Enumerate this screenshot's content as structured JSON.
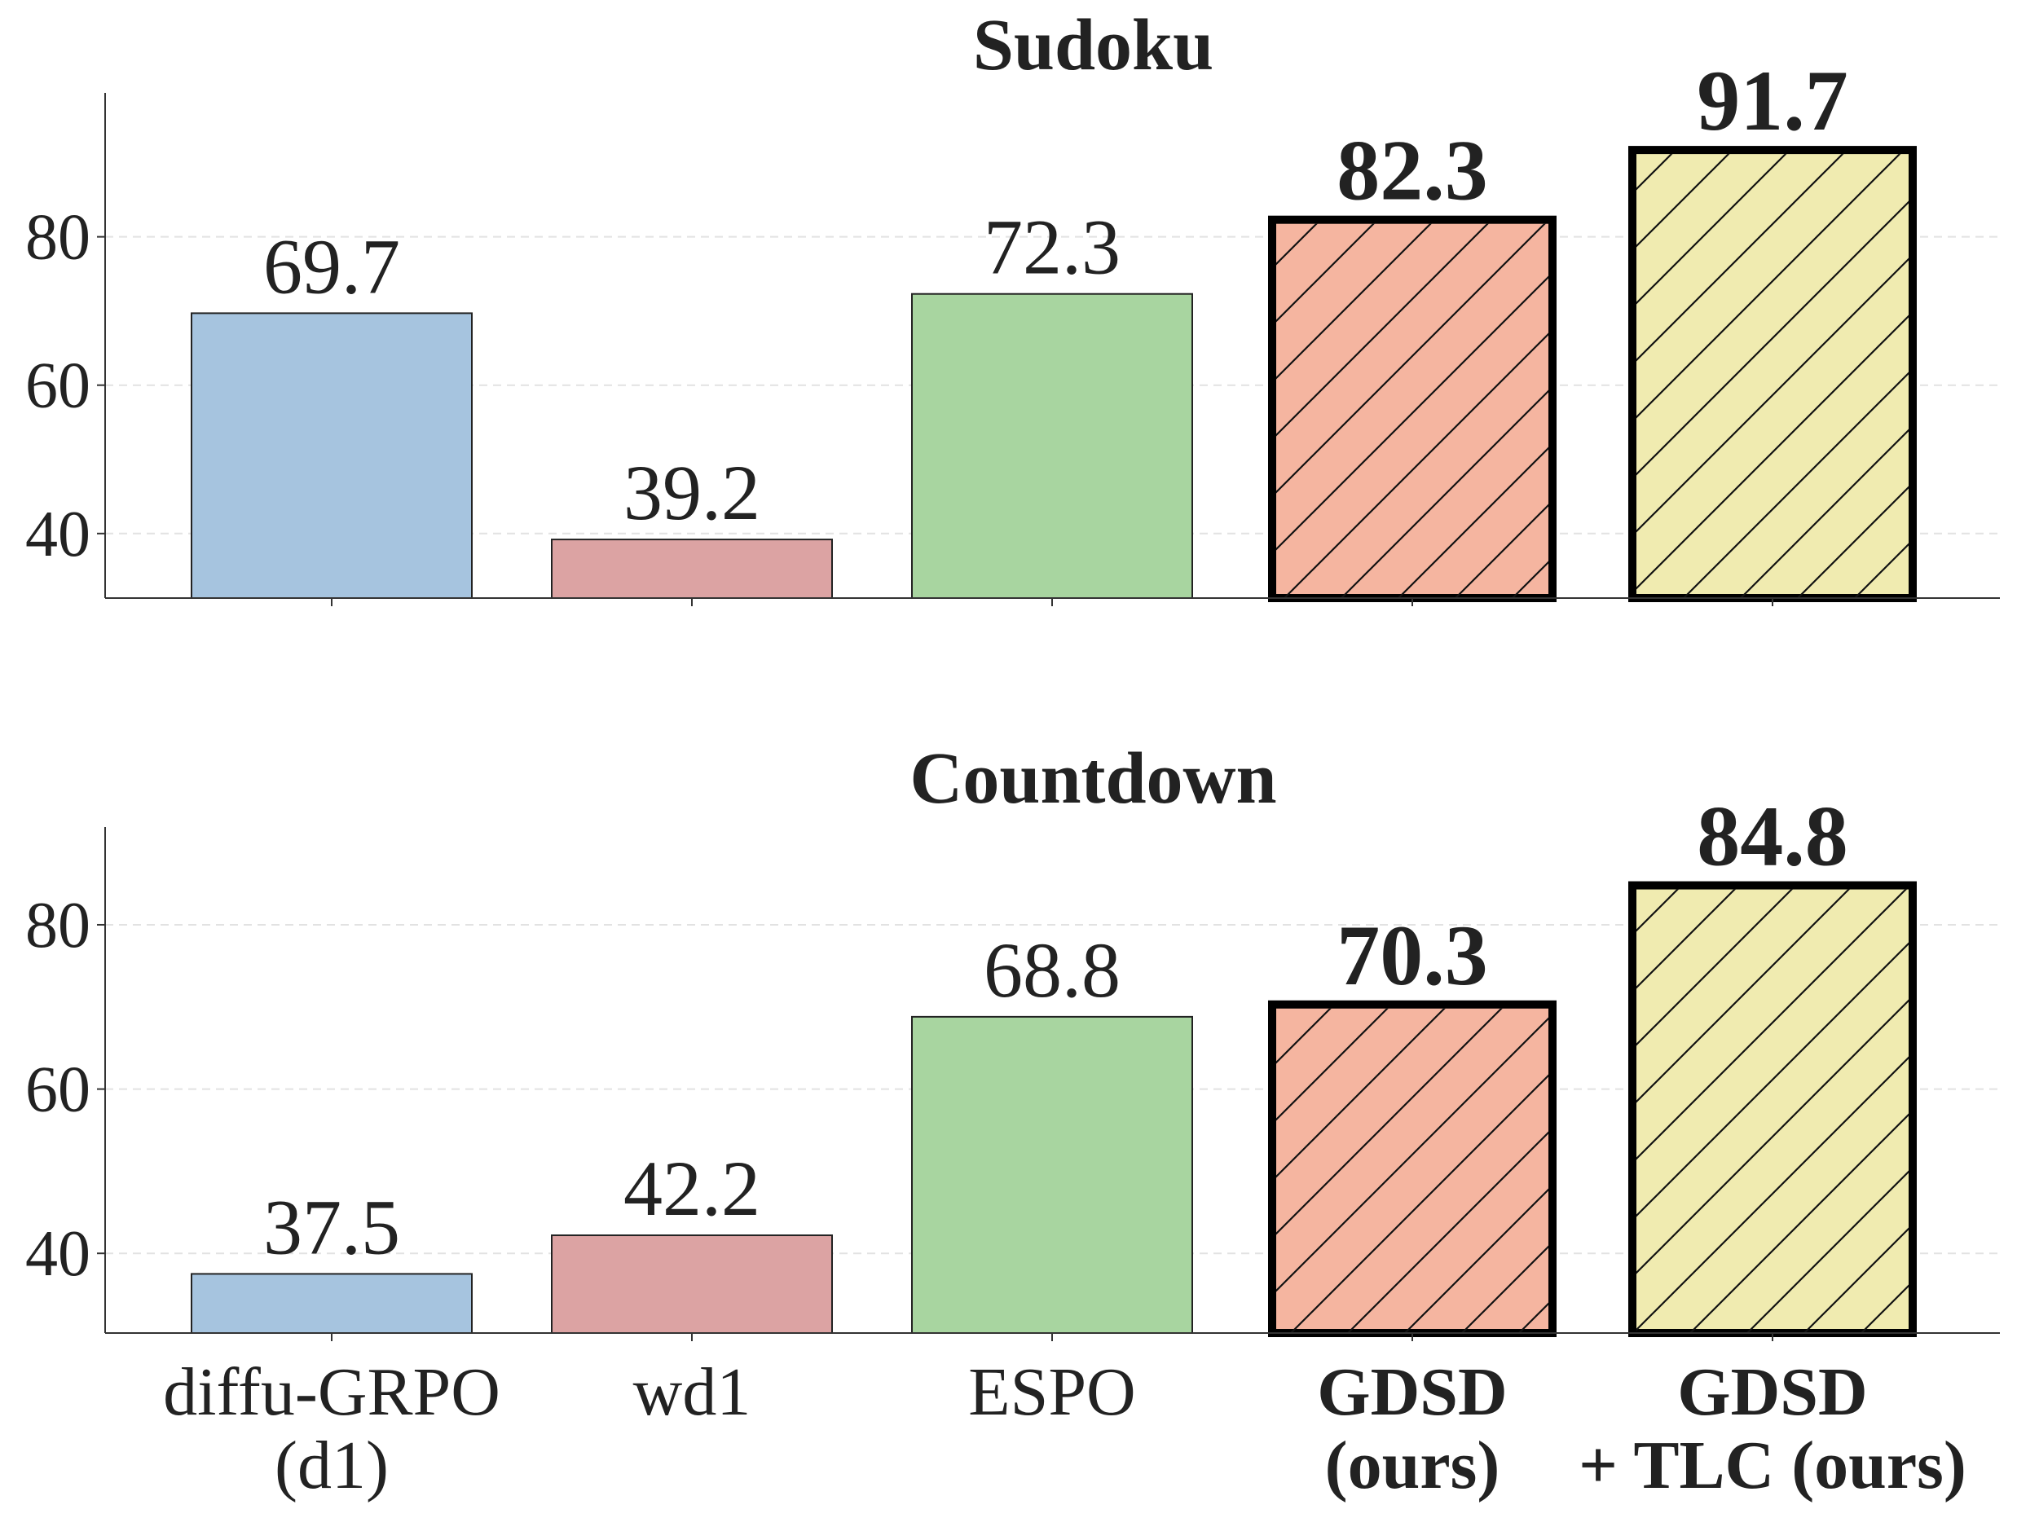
{
  "chart_data": [
    {
      "type": "bar",
      "title": "Sudoku",
      "values": [
        69.7,
        39.2,
        72.3,
        82.3,
        91.7
      ],
      "colors": [
        "#a6c4df",
        "#dca3a3",
        "#a8d5a0",
        "#f5b5a0",
        "#f0ebb0"
      ],
      "highlight": [
        false,
        false,
        false,
        true,
        true
      ],
      "ylim": [
        31.3,
        99.4
      ],
      "yticks": [
        40,
        60,
        80
      ],
      "grid": true
    },
    {
      "type": "bar",
      "title": "Countdown",
      "categories": [
        [
          "diffu-GRPO",
          "(d1)"
        ],
        [
          "wd1"
        ],
        [
          "ESPO"
        ],
        [
          "GDSD",
          "(ours)"
        ],
        [
          "GDSD",
          "+ TLC (ours)"
        ]
      ],
      "values": [
        37.5,
        42.2,
        68.8,
        70.3,
        84.8
      ],
      "colors": [
        "#a6c4df",
        "#dca3a3",
        "#a8d5a0",
        "#f5b5a0",
        "#f0ebb0"
      ],
      "highlight": [
        false,
        false,
        false,
        true,
        true
      ],
      "ylim": [
        30.3,
        91.9
      ],
      "yticks": [
        40,
        60,
        80
      ],
      "grid": true
    }
  ]
}
